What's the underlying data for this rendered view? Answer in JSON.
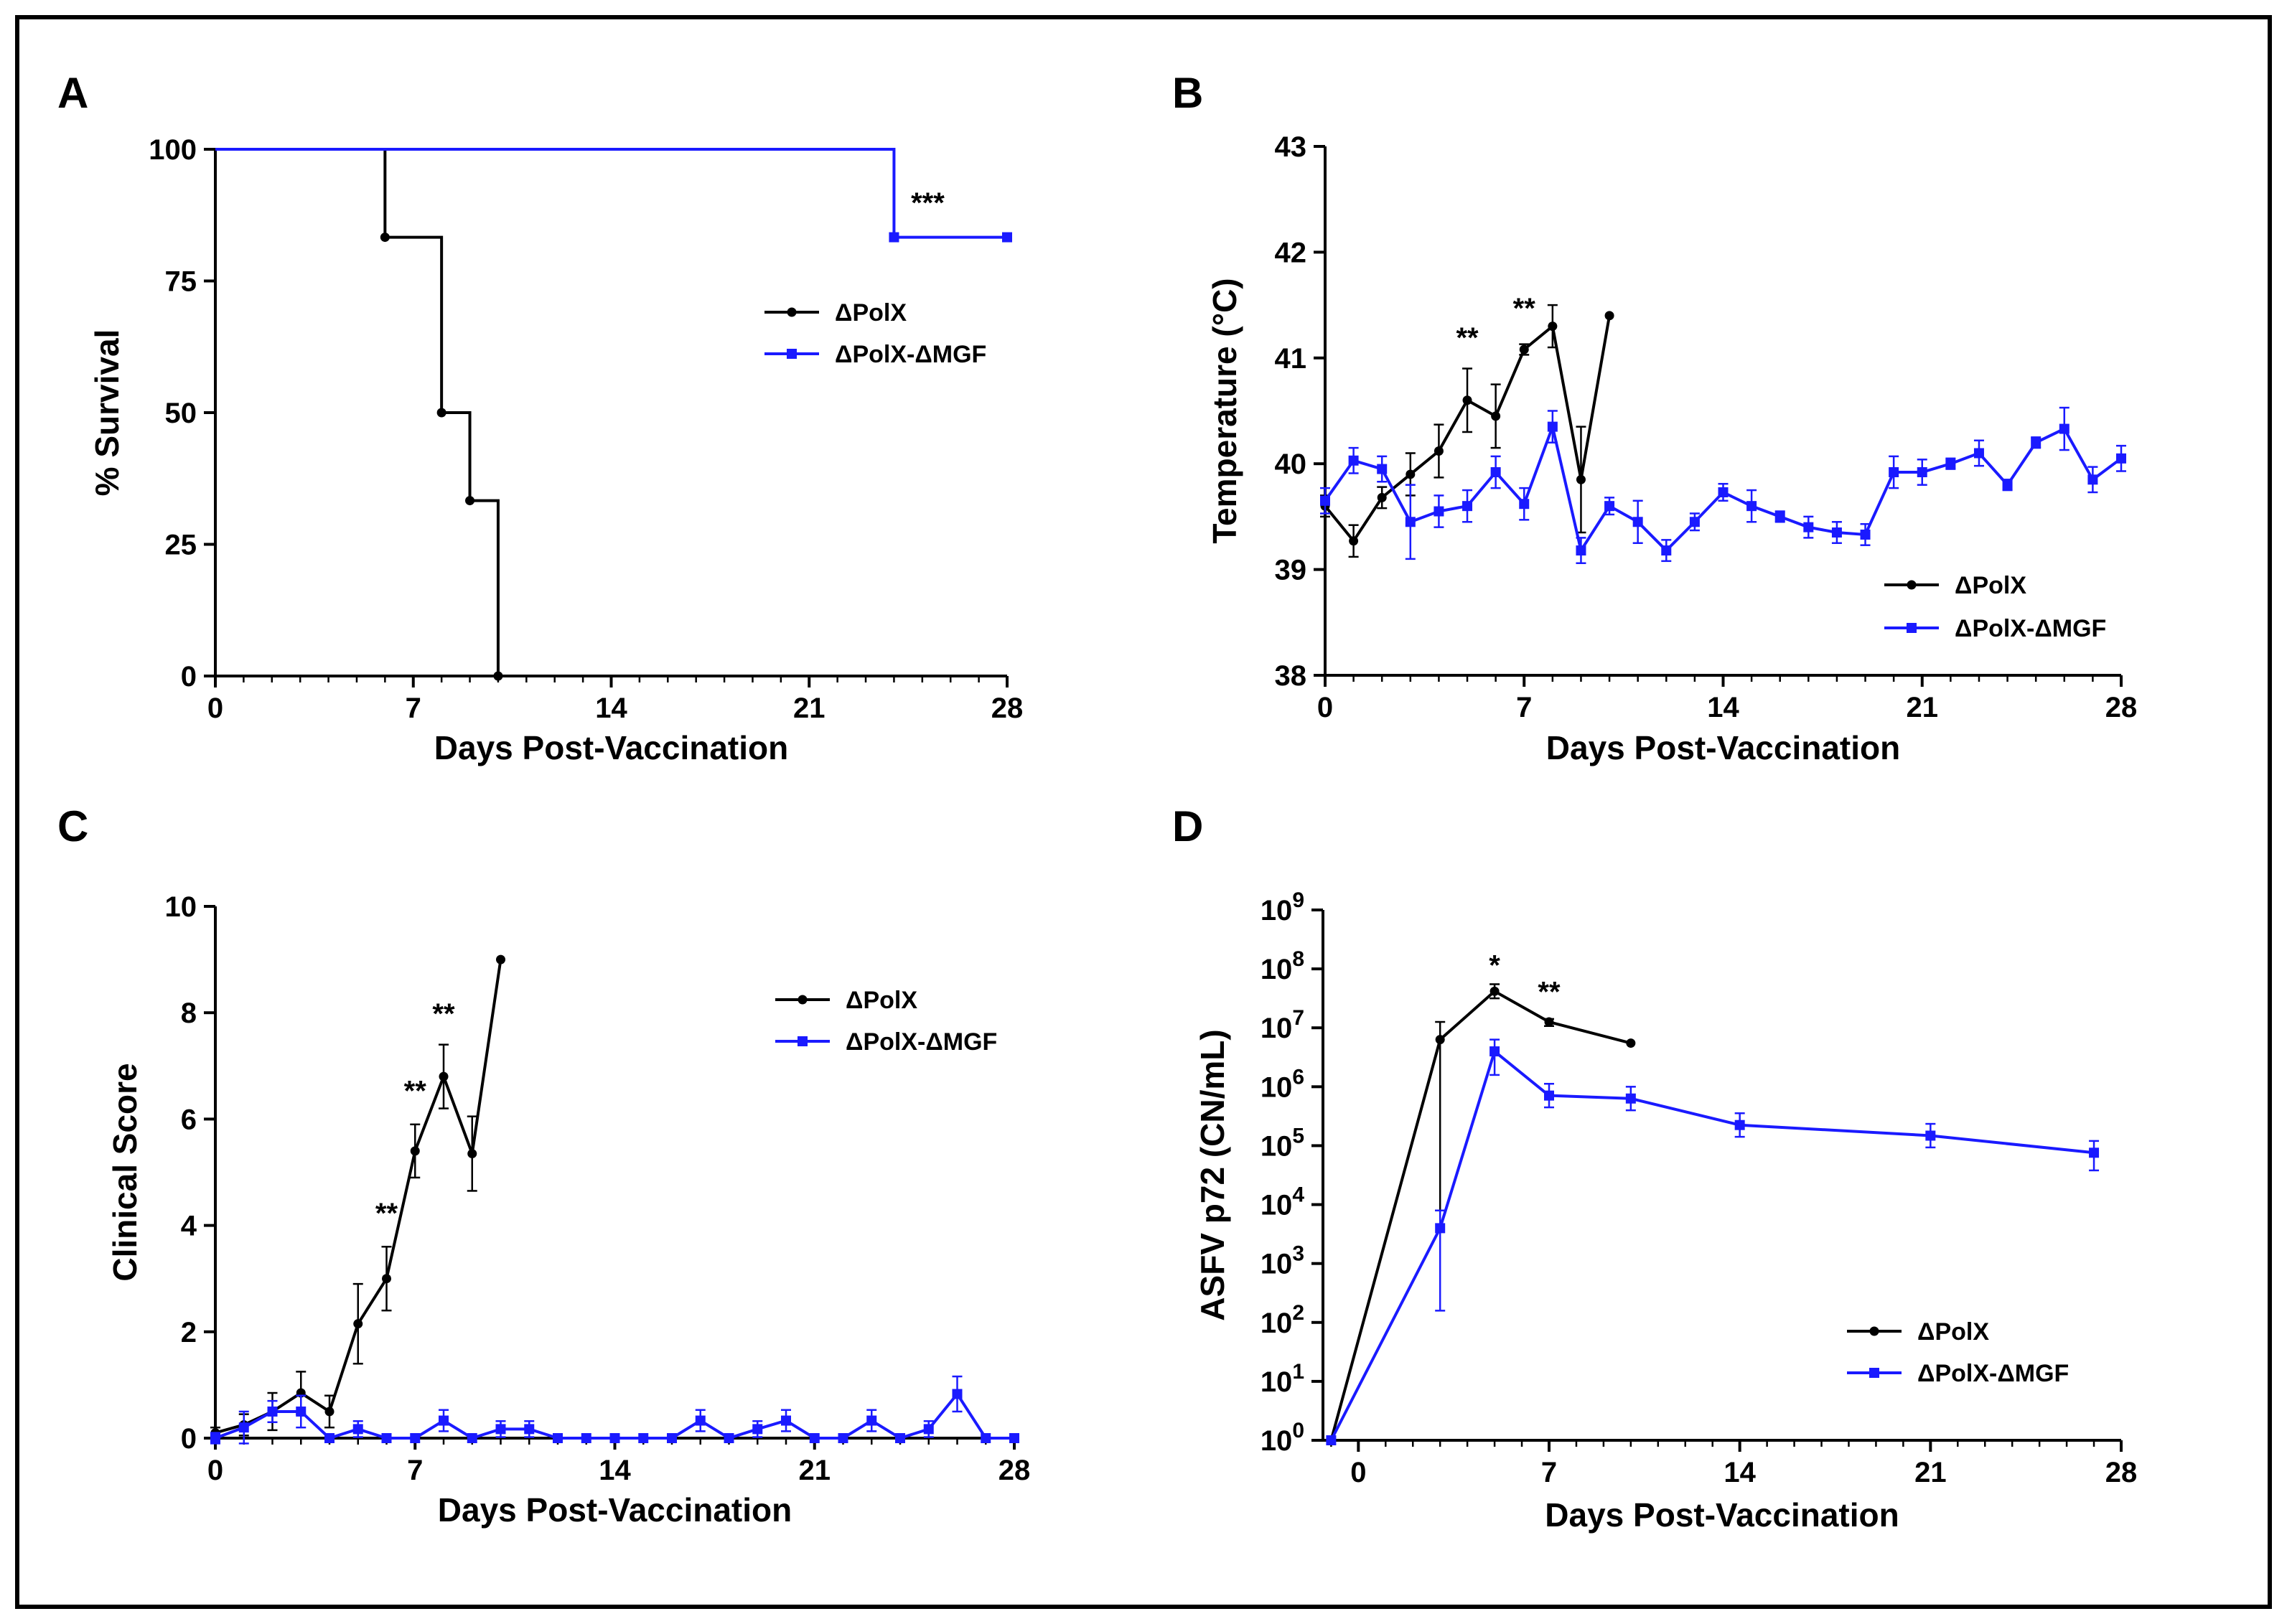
{
  "figure": {
    "colors": {
      "black_series": "#000000",
      "blue_series": "#1a1aff",
      "frame": "#000000"
    }
  },
  "chart_data": [
    {
      "panel": "A",
      "type": "line",
      "step": true,
      "xlabel": "Days  Post-Vaccination",
      "ylabel": "% Survival",
      "xlim": [
        0,
        28
      ],
      "ylim": [
        0,
        100
      ],
      "xticks": [
        0,
        7,
        14,
        21,
        28
      ],
      "yticks": [
        0,
        25,
        50,
        75,
        100
      ],
      "series": [
        {
          "name": "ΔPolX",
          "color": "#000000",
          "marker": "circle",
          "x": [
            0,
            6,
            8,
            9,
            10
          ],
          "y": [
            100,
            83.3,
            50,
            33.3,
            0
          ]
        },
        {
          "name": "ΔPolX-ΔMGF",
          "color": "#1a1aff",
          "marker": "square",
          "x": [
            0,
            24,
            28
          ],
          "y": [
            100,
            83.3,
            83.3
          ]
        }
      ],
      "annotations": [
        {
          "text": "***",
          "x": 24.6,
          "y": 88
        }
      ],
      "legend": "center-right"
    },
    {
      "panel": "B",
      "type": "line",
      "xlabel": "Days Post-Vaccination",
      "ylabel": "Temperature  (°C)",
      "xlim": [
        0,
        28
      ],
      "ylim": [
        38,
        43
      ],
      "xticks": [
        0,
        7,
        14,
        21,
        28
      ],
      "yticks": [
        38,
        39,
        40,
        41,
        42,
        43
      ],
      "series": [
        {
          "name": "ΔPolX",
          "color": "#000000",
          "marker": "circle",
          "x": [
            0,
            1,
            2,
            3,
            4,
            5,
            6,
            7,
            8,
            9,
            10
          ],
          "y": [
            39.6,
            39.27,
            39.68,
            39.9,
            40.12,
            40.6,
            40.45,
            41.08,
            41.3,
            39.85,
            41.4
          ],
          "err": [
            0.1,
            0.15,
            0.1,
            0.2,
            0.25,
            0.3,
            0.3,
            0.05,
            0.2,
            0.5,
            0
          ]
        },
        {
          "name": "ΔPolX-ΔMGF",
          "color": "#1a1aff",
          "marker": "square",
          "x": [
            0,
            1,
            2,
            3,
            4,
            5,
            6,
            7,
            8,
            9,
            10,
            11,
            12,
            13,
            14,
            15,
            16,
            17,
            18,
            19,
            20,
            21,
            22,
            23,
            24,
            25,
            26,
            27,
            28
          ],
          "y": [
            39.65,
            40.03,
            39.95,
            39.45,
            39.55,
            39.6,
            39.92,
            39.62,
            40.35,
            39.18,
            39.6,
            39.45,
            39.18,
            39.45,
            39.73,
            39.6,
            39.5,
            39.4,
            39.35,
            39.33,
            39.92,
            39.92,
            40.0,
            40.1,
            39.8,
            40.2,
            40.33,
            39.85,
            40.05
          ],
          "err": [
            0.12,
            0.12,
            0.12,
            0.35,
            0.15,
            0.15,
            0.15,
            0.15,
            0.15,
            0.12,
            0.08,
            0.2,
            0.1,
            0.08,
            0.08,
            0.15,
            0.05,
            0.1,
            0.1,
            0.1,
            0.15,
            0.12,
            0.05,
            0.12,
            0.05,
            0.05,
            0.2,
            0.12,
            0.12
          ]
        }
      ],
      "annotations": [
        {
          "text": "**",
          "x": 5,
          "y": 41.1
        },
        {
          "text": "**",
          "x": 7,
          "y": 41.38
        }
      ],
      "legend": "bottom-right"
    },
    {
      "panel": "C",
      "type": "line",
      "xlabel": "Days Post-Vaccination",
      "ylabel": "Clinical  Score",
      "xlim": [
        0,
        28
      ],
      "ylim": [
        0,
        10
      ],
      "xticks": [
        0,
        7,
        14,
        21,
        28
      ],
      "yticks": [
        0,
        2,
        4,
        6,
        8,
        10
      ],
      "series": [
        {
          "name": "ΔPolX",
          "color": "#000000",
          "marker": "circle",
          "x": [
            0,
            1,
            2,
            3,
            4,
            5,
            6,
            7,
            8,
            9,
            10
          ],
          "y": [
            0.1,
            0.25,
            0.5,
            0.85,
            0.5,
            2.15,
            3.0,
            5.4,
            6.8,
            5.35,
            9.0
          ],
          "err": [
            0.1,
            0.2,
            0.35,
            0.4,
            0.3,
            0.75,
            0.6,
            0.5,
            0.6,
            0.7,
            0
          ]
        },
        {
          "name": "ΔPolX-ΔMGF",
          "color": "#1a1aff",
          "marker": "square",
          "x": [
            0,
            1,
            2,
            3,
            4,
            5,
            6,
            7,
            8,
            9,
            10,
            11,
            12,
            13,
            14,
            15,
            16,
            17,
            18,
            19,
            20,
            21,
            22,
            23,
            24,
            25,
            26,
            27,
            28
          ],
          "y": [
            0,
            0.2,
            0.5,
            0.5,
            0,
            0.17,
            0,
            0,
            0.33,
            0,
            0.17,
            0.17,
            0,
            0,
            0,
            0,
            0,
            0.33,
            0,
            0.17,
            0.33,
            0,
            0,
            0.33,
            0,
            0.17,
            0.83,
            0,
            0
          ],
          "err": [
            0.1,
            0.3,
            0.2,
            0.3,
            0,
            0.15,
            0,
            0,
            0.2,
            0,
            0.15,
            0.15,
            0,
            0,
            0,
            0,
            0,
            0.2,
            0,
            0.15,
            0.2,
            0,
            0,
            0.2,
            0,
            0.15,
            0.33,
            0,
            0
          ]
        }
      ],
      "annotations": [
        {
          "text": "**",
          "x": 6,
          "y": 4.05
        },
        {
          "text": "**",
          "x": 7,
          "y": 6.35
        },
        {
          "text": "**",
          "x": 8,
          "y": 7.8
        }
      ],
      "legend": "top-right"
    },
    {
      "panel": "D",
      "type": "line",
      "yscale": "log10",
      "xlabel": "Days Post-Vaccination",
      "ylabel": "ASFV p72  (CN/mL)",
      "xlim": [
        -1.3,
        28
      ],
      "ylim": [
        0,
        9
      ],
      "xticks": [
        0,
        7,
        14,
        21,
        28
      ],
      "yticks": [
        0,
        1,
        2,
        3,
        4,
        5,
        6,
        7,
        8,
        9
      ],
      "ytick_labels": [
        {
          "base": "10",
          "exp": "0"
        },
        {
          "base": "10",
          "exp": "1"
        },
        {
          "base": "10",
          "exp": "2"
        },
        {
          "base": "10",
          "exp": "3"
        },
        {
          "base": "10",
          "exp": "4"
        },
        {
          "base": "10",
          "exp": "5"
        },
        {
          "base": "10",
          "exp": "6"
        },
        {
          "base": "10",
          "exp": "7"
        },
        {
          "base": "10",
          "exp": "8"
        },
        {
          "base": "10",
          "exp": "9"
        }
      ],
      "series": [
        {
          "name": "ΔPolX",
          "color": "#000000",
          "marker": "circle",
          "x": [
            -1,
            3,
            5,
            7,
            10
          ],
          "log10_y": [
            0,
            6.8,
            7.62,
            7.1,
            6.74
          ],
          "err_low": [
            0,
            2.9,
            0.12,
            0.07,
            0
          ],
          "err_high": [
            0,
            0.3,
            0.12,
            0.05,
            0
          ]
        },
        {
          "name": "ΔPolX-ΔMGF",
          "color": "#1a1aff",
          "marker": "square",
          "x": [
            -1,
            3,
            5,
            7,
            10,
            14,
            21,
            27
          ],
          "log10_y": [
            0,
            3.6,
            6.6,
            5.85,
            5.8,
            5.35,
            5.17,
            4.88
          ],
          "err_low": [
            0,
            1.4,
            0.4,
            0.2,
            0.2,
            0.2,
            0.2,
            0.3
          ],
          "err_high": [
            0,
            0.3,
            0.2,
            0.2,
            0.2,
            0.2,
            0.2,
            0.2
          ]
        }
      ],
      "annotations": [
        {
          "text": "*",
          "x": 5,
          "y": 7.9
        },
        {
          "text": "**",
          "x": 7,
          "y": 7.45
        }
      ],
      "legend": "bottom-right"
    }
  ]
}
